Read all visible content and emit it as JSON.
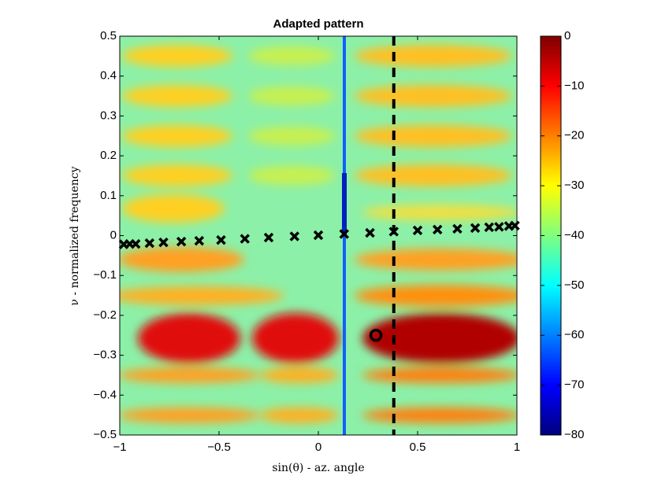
{
  "chart_data": {
    "type": "heatmap",
    "title": "Adapted pattern",
    "xlabel": "sin(θ) - az. angle",
    "ylabel": "ν - normalized frequency",
    "xlim": [
      -1,
      1
    ],
    "ylim": [
      -0.5,
      0.5
    ],
    "xticks": [
      {
        "value": -1,
        "label": "−1"
      },
      {
        "value": -0.5,
        "label": "−0.5"
      },
      0,
      0.5,
      1
    ],
    "yticks": [
      {
        "value": -0.5,
        "label": "−0.5"
      },
      {
        "value": -0.4,
        "label": "−0.4"
      },
      {
        "value": -0.3,
        "label": "−0.3"
      },
      {
        "value": -0.2,
        "label": "−0.2"
      },
      {
        "value": -0.1,
        "label": "−0.1"
      },
      0,
      0.1,
      0.2,
      0.3,
      0.4,
      0.5
    ],
    "colorbar": {
      "lim": [
        -80,
        0
      ],
      "ticks": [
        {
          "value": -80,
          "label": "−80"
        },
        {
          "value": -70,
          "label": "−70"
        },
        {
          "value": -60,
          "label": "−60"
        },
        {
          "value": -50,
          "label": "−50"
        },
        {
          "value": -40,
          "label": "−40"
        },
        {
          "value": -30,
          "label": "−30"
        },
        {
          "value": -20,
          "label": "−20"
        },
        {
          "value": -10,
          "label": "−10"
        },
        0
      ]
    },
    "clutter": {
      "color": "#000000",
      "x": [
        -0.98,
        -0.95,
        -0.92,
        -0.85,
        -0.78,
        -0.69,
        -0.6,
        -0.49,
        -0.37,
        -0.25,
        -0.12,
        0,
        0.13,
        0.26,
        0.38,
        0.5,
        0.6,
        0.7,
        0.79,
        0.86,
        0.91,
        0.96,
        0.99
      ],
      "values": [
        -0.022,
        -0.021,
        -0.021,
        -0.019,
        -0.017,
        -0.015,
        -0.013,
        -0.011,
        -0.008,
        -0.005,
        -0.002,
        0.001,
        0.004,
        0.007,
        0.01,
        0.013,
        0.015,
        0.017,
        0.019,
        0.021,
        0.022,
        0.024,
        0.025
      ]
    },
    "target": {
      "x": 0.29,
      "y": -0.25,
      "color": "#000000"
    },
    "steer_line": {
      "x": 0.38,
      "color": "#000000"
    }
  }
}
